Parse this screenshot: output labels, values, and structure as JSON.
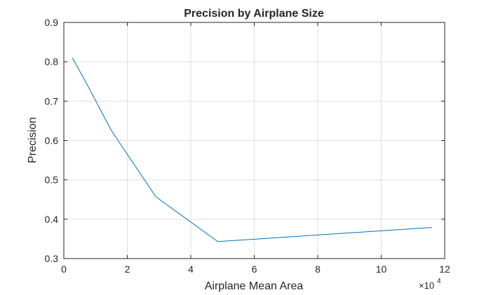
{
  "chart_data": {
    "type": "line",
    "title": "Precision by Airplane Size",
    "xlabel": "Airplane Mean Area",
    "ylabel": "Precision",
    "x_multiplier": {
      "base": "×10",
      "exponent": "4"
    },
    "xlim": [
      0,
      12
    ],
    "ylim": [
      0.3,
      0.9
    ],
    "x_ticks": [
      0,
      2,
      4,
      6,
      8,
      10,
      12
    ],
    "x_tick_labels": [
      "0",
      "2",
      "4",
      "6",
      "8",
      "10",
      "12"
    ],
    "y_ticks": [
      0.3,
      0.4,
      0.5,
      0.6,
      0.7,
      0.8,
      0.9
    ],
    "y_tick_labels": [
      "0.3",
      "0.4",
      "0.5",
      "0.6",
      "0.7",
      "0.8",
      "0.9"
    ],
    "grid": true,
    "series": [
      {
        "color": "#0072BD",
        "x": [
          0.27,
          0.75,
          1.5,
          2.9,
          4.85,
          11.6
        ],
        "y": [
          0.81,
          0.74,
          0.625,
          0.457,
          0.343,
          0.379
        ]
      }
    ]
  }
}
